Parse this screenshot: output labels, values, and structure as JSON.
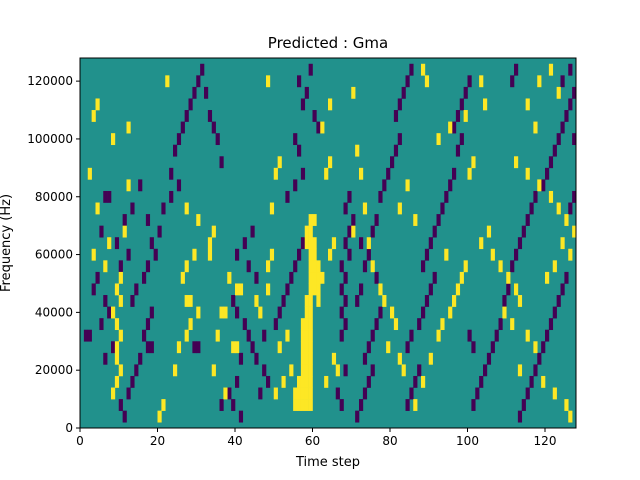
{
  "chart_data": {
    "type": "heatmap",
    "title": "Predicted : Gma",
    "xlabel": "Time step",
    "ylabel": "Frequency (Hz)",
    "xlim": [
      0,
      128
    ],
    "ylim": [
      0,
      128000
    ],
    "x_ticks": [
      0,
      20,
      40,
      60,
      80,
      100,
      120
    ],
    "y_ticks": [
      0,
      20000,
      40000,
      60000,
      80000,
      100000,
      120000
    ],
    "x_tick_labels": [
      "0",
      "20",
      "40",
      "60",
      "80",
      "100",
      "120"
    ],
    "y_tick_labels": [
      "0",
      "20000",
      "40000",
      "60000",
      "80000",
      "100000",
      "120000"
    ],
    "grid": false,
    "colormap": {
      "low": "#440154",
      "mid": "#21918c",
      "high": "#fde725"
    },
    "background_value": 0,
    "value_range": [
      -1,
      1
    ],
    "cell_width": 1,
    "cell_height": 4000,
    "high_cells": [
      [
        55,
        6000
      ],
      [
        56,
        6000
      ],
      [
        57,
        6000
      ],
      [
        58,
        6000
      ],
      [
        59,
        6000
      ],
      [
        55,
        10000
      ],
      [
        56,
        10000
      ],
      [
        57,
        10000
      ],
      [
        58,
        10000
      ],
      [
        59,
        10000
      ],
      [
        56,
        14000
      ],
      [
        57,
        14000
      ],
      [
        58,
        14000
      ],
      [
        59,
        14000
      ],
      [
        57,
        18000
      ],
      [
        58,
        18000
      ],
      [
        59,
        18000
      ],
      [
        57,
        22000
      ],
      [
        58,
        22000
      ],
      [
        59,
        22000
      ],
      [
        57,
        26000
      ],
      [
        58,
        26000
      ],
      [
        59,
        26000
      ],
      [
        57,
        30000
      ],
      [
        58,
        30000
      ],
      [
        59,
        30000
      ],
      [
        57,
        34000
      ],
      [
        58,
        34000
      ],
      [
        59,
        34000
      ],
      [
        58,
        38000
      ],
      [
        59,
        38000
      ],
      [
        58,
        42000
      ],
      [
        59,
        42000
      ],
      [
        61,
        42000
      ],
      [
        59,
        46000
      ],
      [
        60,
        46000
      ],
      [
        61,
        46000
      ],
      [
        59,
        50000
      ],
      [
        60,
        50000
      ],
      [
        61,
        50000
      ],
      [
        59,
        54000
      ],
      [
        60,
        54000
      ],
      [
        61,
        54000
      ],
      [
        59,
        58000
      ],
      [
        60,
        58000
      ],
      [
        58,
        62000
      ],
      [
        59,
        62000
      ],
      [
        60,
        62000
      ],
      [
        58,
        66000
      ],
      [
        59,
        66000
      ],
      [
        59,
        70000
      ],
      [
        60,
        70000
      ],
      [
        8,
        10000
      ],
      [
        9,
        14000
      ],
      [
        10,
        18000
      ],
      [
        9,
        22000
      ],
      [
        9,
        26000
      ],
      [
        10,
        30000
      ],
      [
        9,
        34000
      ],
      [
        8,
        38000
      ],
      [
        10,
        42000
      ],
      [
        9,
        46000
      ],
      [
        10,
        50000
      ],
      [
        6,
        54000
      ],
      [
        3,
        58000
      ],
      [
        7,
        62000
      ],
      [
        11,
        66000
      ],
      [
        4,
        74000
      ],
      [
        12,
        82000
      ],
      [
        2,
        86000
      ],
      [
        8,
        98000
      ],
      [
        12,
        102000
      ],
      [
        3,
        106000
      ],
      [
        4,
        110000
      ],
      [
        22,
        118000
      ],
      [
        20,
        2000
      ],
      [
        21,
        6000
      ],
      [
        24,
        18000
      ],
      [
        25,
        26000
      ],
      [
        27,
        30000
      ],
      [
        28,
        34000
      ],
      [
        27,
        42000
      ],
      [
        28,
        42000
      ],
      [
        30,
        38000
      ],
      [
        26,
        50000
      ],
      [
        27,
        54000
      ],
      [
        29,
        58000
      ],
      [
        33,
        62000
      ],
      [
        34,
        66000
      ],
      [
        30,
        70000
      ],
      [
        27,
        74000
      ],
      [
        36,
        38000
      ],
      [
        37,
        38000
      ],
      [
        40,
        46000
      ],
      [
        41,
        46000
      ],
      [
        39,
        26000
      ],
      [
        40,
        26000
      ],
      [
        35,
        30000
      ],
      [
        37,
        10000
      ],
      [
        34,
        18000
      ],
      [
        38,
        50000
      ],
      [
        33,
        58000
      ],
      [
        45,
        42000
      ],
      [
        46,
        38000
      ],
      [
        48,
        54000
      ],
      [
        49,
        58000
      ],
      [
        48,
        46000
      ],
      [
        49,
        74000
      ],
      [
        50,
        86000
      ],
      [
        51,
        90000
      ],
      [
        48,
        118000
      ],
      [
        50,
        10000
      ],
      [
        51,
        26000
      ],
      [
        53,
        30000
      ],
      [
        52,
        14000
      ],
      [
        54,
        18000
      ],
      [
        63,
        14000
      ],
      [
        65,
        22000
      ],
      [
        66,
        18000
      ],
      [
        62,
        50000
      ],
      [
        64,
        58000
      ],
      [
        65,
        62000
      ],
      [
        63,
        86000
      ],
      [
        64,
        90000
      ],
      [
        62,
        102000
      ],
      [
        64,
        110000
      ],
      [
        70,
        114000
      ],
      [
        71,
        94000
      ],
      [
        72,
        86000
      ],
      [
        73,
        74000
      ],
      [
        74,
        62000
      ],
      [
        75,
        54000
      ],
      [
        70,
        66000
      ],
      [
        77,
        46000
      ],
      [
        78,
        42000
      ],
      [
        80,
        38000
      ],
      [
        81,
        34000
      ],
      [
        79,
        26000
      ],
      [
        82,
        22000
      ],
      [
        83,
        18000
      ],
      [
        86,
        6000
      ],
      [
        88,
        14000
      ],
      [
        90,
        22000
      ],
      [
        92,
        30000
      ],
      [
        93,
        34000
      ],
      [
        95,
        38000
      ],
      [
        96,
        42000
      ],
      [
        97,
        46000
      ],
      [
        98,
        50000
      ],
      [
        99,
        54000
      ],
      [
        94,
        58000
      ],
      [
        100,
        86000
      ],
      [
        101,
        90000
      ],
      [
        92,
        98000
      ],
      [
        95,
        102000
      ],
      [
        99,
        106000
      ],
      [
        104,
        110000
      ],
      [
        103,
        118000
      ],
      [
        88,
        122000
      ],
      [
        89,
        118000
      ],
      [
        82,
        74000
      ],
      [
        84,
        82000
      ],
      [
        86,
        70000
      ],
      [
        105,
        66000
      ],
      [
        103,
        62000
      ],
      [
        106,
        58000
      ],
      [
        108,
        54000
      ],
      [
        110,
        50000
      ],
      [
        112,
        46000
      ],
      [
        113,
        42000
      ],
      [
        109,
        38000
      ],
      [
        111,
        34000
      ],
      [
        115,
        30000
      ],
      [
        117,
        26000
      ],
      [
        113,
        18000
      ],
      [
        119,
        14000
      ],
      [
        122,
        10000
      ],
      [
        125,
        6000
      ],
      [
        126,
        2000
      ],
      [
        112,
        90000
      ],
      [
        115,
        86000
      ],
      [
        118,
        82000
      ],
      [
        121,
        78000
      ],
      [
        123,
        74000
      ],
      [
        125,
        70000
      ],
      [
        127,
        66000
      ],
      [
        124,
        62000
      ],
      [
        126,
        58000
      ],
      [
        122,
        54000
      ],
      [
        120,
        50000
      ],
      [
        117,
        102000
      ],
      [
        115,
        110000
      ],
      [
        118,
        118000
      ],
      [
        121,
        122000
      ],
      [
        123,
        114000
      ]
    ],
    "low_cells": [
      [
        1,
        30000
      ],
      [
        2,
        30000
      ],
      [
        17,
        26000
      ],
      [
        18,
        26000
      ],
      [
        29,
        26000
      ],
      [
        30,
        26000
      ],
      [
        6,
        78000
      ],
      [
        7,
        78000
      ],
      [
        66,
        10000
      ],
      [
        67,
        6000
      ],
      [
        68,
        18000
      ],
      [
        67,
        30000
      ],
      [
        68,
        34000
      ],
      [
        67,
        38000
      ],
      [
        68,
        42000
      ],
      [
        67,
        46000
      ],
      [
        68,
        50000
      ],
      [
        67,
        54000
      ],
      [
        69,
        58000
      ],
      [
        68,
        62000
      ],
      [
        69,
        66000
      ],
      [
        70,
        70000
      ],
      [
        68,
        74000
      ],
      [
        69,
        78000
      ],
      [
        10,
        6000
      ],
      [
        11,
        2000
      ],
      [
        12,
        10000
      ],
      [
        13,
        14000
      ],
      [
        14,
        18000
      ],
      [
        15,
        22000
      ],
      [
        16,
        30000
      ],
      [
        17,
        34000
      ],
      [
        18,
        38000
      ],
      [
        13,
        42000
      ],
      [
        14,
        46000
      ],
      [
        16,
        50000
      ],
      [
        17,
        54000
      ],
      [
        19,
        58000
      ],
      [
        18,
        62000
      ],
      [
        20,
        66000
      ],
      [
        17,
        70000
      ],
      [
        21,
        74000
      ],
      [
        23,
        78000
      ],
      [
        25,
        82000
      ],
      [
        23,
        86000
      ],
      [
        24,
        94000
      ],
      [
        25,
        98000
      ],
      [
        26,
        102000
      ],
      [
        27,
        106000
      ],
      [
        28,
        110000
      ],
      [
        29,
        114000
      ],
      [
        30,
        118000
      ],
      [
        31,
        122000
      ],
      [
        32,
        114000
      ],
      [
        33,
        106000
      ],
      [
        34,
        102000
      ],
      [
        35,
        98000
      ],
      [
        36,
        90000
      ],
      [
        15,
        82000
      ],
      [
        13,
        74000
      ],
      [
        11,
        70000
      ],
      [
        12,
        58000
      ],
      [
        10,
        54000
      ],
      [
        9,
        62000
      ],
      [
        5,
        66000
      ],
      [
        4,
        50000
      ],
      [
        3,
        46000
      ],
      [
        6,
        42000
      ],
      [
        7,
        38000
      ],
      [
        5,
        34000
      ],
      [
        8,
        26000
      ],
      [
        6,
        22000
      ],
      [
        39,
        42000
      ],
      [
        40,
        38000
      ],
      [
        42,
        34000
      ],
      [
        43,
        30000
      ],
      [
        44,
        26000
      ],
      [
        41,
        22000
      ],
      [
        40,
        14000
      ],
      [
        38,
        10000
      ],
      [
        39,
        6000
      ],
      [
        41,
        2000
      ],
      [
        36,
        6000
      ],
      [
        47,
        18000
      ],
      [
        48,
        14000
      ],
      [
        46,
        10000
      ],
      [
        45,
        22000
      ],
      [
        47,
        30000
      ],
      [
        50,
        34000
      ],
      [
        51,
        38000
      ],
      [
        52,
        42000
      ],
      [
        53,
        46000
      ],
      [
        54,
        50000
      ],
      [
        55,
        54000
      ],
      [
        56,
        58000
      ],
      [
        57,
        62000
      ],
      [
        44,
        66000
      ],
      [
        42,
        62000
      ],
      [
        40,
        58000
      ],
      [
        43,
        54000
      ],
      [
        45,
        50000
      ],
      [
        53,
        78000
      ],
      [
        55,
        82000
      ],
      [
        57,
        86000
      ],
      [
        56,
        94000
      ],
      [
        55,
        98000
      ],
      [
        57,
        110000
      ],
      [
        58,
        114000
      ],
      [
        56,
        118000
      ],
      [
        59,
        122000
      ],
      [
        60,
        106000
      ],
      [
        61,
        102000
      ],
      [
        71,
        2000
      ],
      [
        72,
        6000
      ],
      [
        73,
        10000
      ],
      [
        74,
        14000
      ],
      [
        75,
        18000
      ],
      [
        73,
        22000
      ],
      [
        74,
        26000
      ],
      [
        75,
        30000
      ],
      [
        76,
        34000
      ],
      [
        77,
        38000
      ],
      [
        71,
        42000
      ],
      [
        72,
        46000
      ],
      [
        76,
        50000
      ],
      [
        73,
        54000
      ],
      [
        74,
        58000
      ],
      [
        72,
        62000
      ],
      [
        75,
        66000
      ],
      [
        76,
        70000
      ],
      [
        77,
        78000
      ],
      [
        78,
        82000
      ],
      [
        79,
        86000
      ],
      [
        80,
        90000
      ],
      [
        81,
        94000
      ],
      [
        82,
        98000
      ],
      [
        81,
        106000
      ],
      [
        82,
        110000
      ],
      [
        83,
        114000
      ],
      [
        84,
        118000
      ],
      [
        85,
        122000
      ],
      [
        84,
        6000
      ],
      [
        85,
        10000
      ],
      [
        86,
        14000
      ],
      [
        87,
        18000
      ],
      [
        84,
        26000
      ],
      [
        85,
        30000
      ],
      [
        87,
        34000
      ],
      [
        88,
        38000
      ],
      [
        89,
        42000
      ],
      [
        90,
        46000
      ],
      [
        91,
        50000
      ],
      [
        88,
        54000
      ],
      [
        89,
        58000
      ],
      [
        90,
        62000
      ],
      [
        91,
        66000
      ],
      [
        92,
        70000
      ],
      [
        93,
        74000
      ],
      [
        94,
        78000
      ],
      [
        95,
        82000
      ],
      [
        96,
        86000
      ],
      [
        97,
        94000
      ],
      [
        98,
        98000
      ],
      [
        96,
        102000
      ],
      [
        97,
        106000
      ],
      [
        98,
        110000
      ],
      [
        99,
        114000
      ],
      [
        100,
        118000
      ],
      [
        101,
        6000
      ],
      [
        102,
        10000
      ],
      [
        103,
        14000
      ],
      [
        104,
        18000
      ],
      [
        105,
        22000
      ],
      [
        106,
        26000
      ],
      [
        107,
        30000
      ],
      [
        108,
        34000
      ],
      [
        109,
        42000
      ],
      [
        110,
        46000
      ],
      [
        111,
        54000
      ],
      [
        112,
        58000
      ],
      [
        113,
        62000
      ],
      [
        114,
        66000
      ],
      [
        115,
        70000
      ],
      [
        116,
        74000
      ],
      [
        117,
        78000
      ],
      [
        119,
        82000
      ],
      [
        120,
        86000
      ],
      [
        121,
        90000
      ],
      [
        122,
        94000
      ],
      [
        123,
        98000
      ],
      [
        124,
        102000
      ],
      [
        125,
        106000
      ],
      [
        126,
        110000
      ],
      [
        127,
        114000
      ],
      [
        124,
        118000
      ],
      [
        126,
        122000
      ],
      [
        127,
        78000
      ],
      [
        126,
        74000
      ],
      [
        125,
        50000
      ],
      [
        124,
        46000
      ],
      [
        123,
        42000
      ],
      [
        122,
        38000
      ],
      [
        121,
        34000
      ],
      [
        120,
        30000
      ],
      [
        119,
        26000
      ],
      [
        118,
        22000
      ],
      [
        117,
        18000
      ],
      [
        116,
        14000
      ],
      [
        115,
        10000
      ],
      [
        114,
        6000
      ],
      [
        113,
        2000
      ],
      [
        112,
        122000
      ],
      [
        111,
        118000
      ],
      [
        127,
        98000
      ],
      [
        101,
        26000
      ],
      [
        100,
        30000
      ]
    ]
  }
}
